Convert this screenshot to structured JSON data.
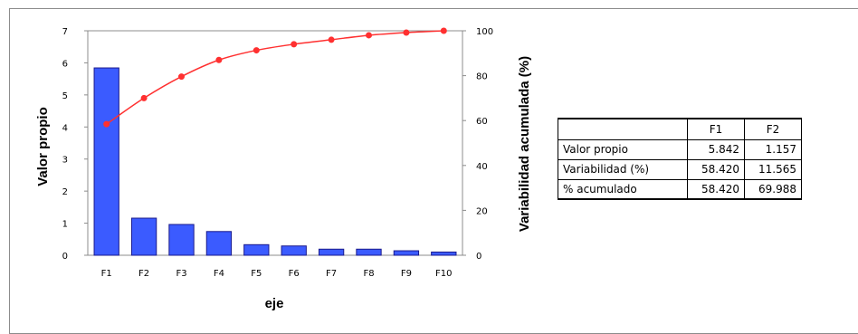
{
  "chart_data": {
    "type": "bar+line",
    "categories": [
      "F1",
      "F2",
      "F3",
      "F4",
      "F5",
      "F6",
      "F7",
      "F8",
      "F9",
      "F10"
    ],
    "series": [
      {
        "name": "Valor propio",
        "axis": "left",
        "type": "bar",
        "values": [
          5.842,
          1.157,
          0.96,
          0.74,
          0.33,
          0.29,
          0.19,
          0.19,
          0.14,
          0.1
        ],
        "color": "#3b5bff"
      },
      {
        "name": "Variabilidad acumulada (%)",
        "axis": "right",
        "type": "line",
        "values": [
          58.42,
          69.99,
          79.6,
          87.0,
          91.3,
          94.0,
          96.0,
          98.0,
          99.2,
          100.0
        ],
        "color": "#ff3030"
      }
    ],
    "xlabel": "eje",
    "ylabel": "Valor propio",
    "y2label": "Variabilidad acumulada (%)",
    "ylim": [
      0,
      7
    ],
    "y2lim": [
      0,
      100
    ],
    "yticks": [
      "0",
      "1",
      "2",
      "3",
      "4",
      "5",
      "6",
      "7"
    ],
    "y2ticks": [
      "0",
      "20",
      "40",
      "60",
      "80",
      "100"
    ]
  },
  "table": {
    "headers": [
      "F1",
      "F2"
    ],
    "rows": [
      {
        "label": "Valor propio",
        "values": [
          "5.842",
          "1.157"
        ]
      },
      {
        "label": "Variabilidad (%)",
        "values": [
          "58.420",
          "11.565"
        ]
      },
      {
        "label": "% acumulado",
        "values": [
          "58.420",
          "69.988"
        ]
      }
    ]
  }
}
